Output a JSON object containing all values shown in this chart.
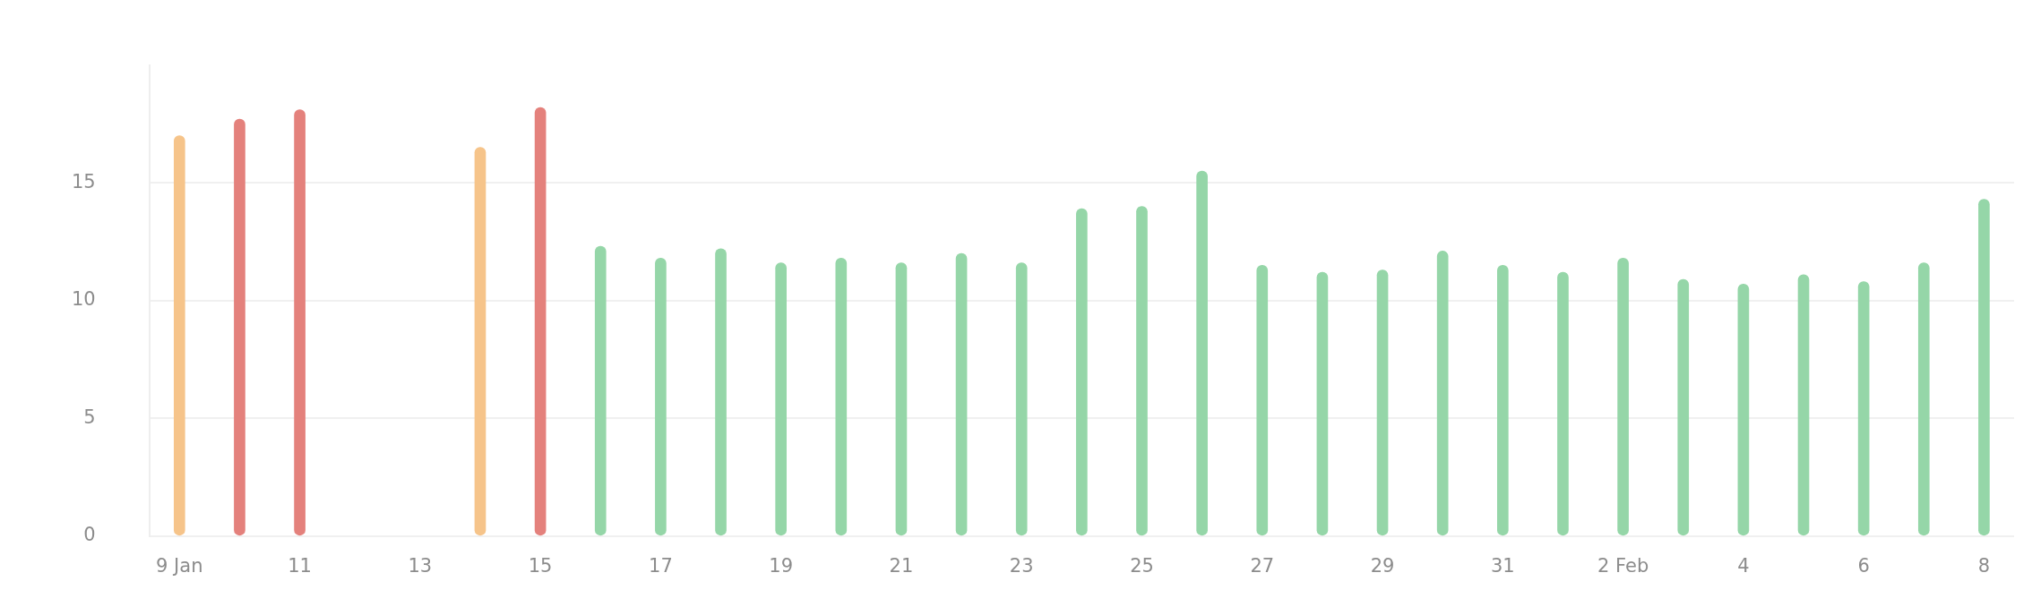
{
  "chart_data": {
    "type": "bar",
    "categories": [
      "9 Jan",
      null,
      "11",
      null,
      "13",
      null,
      "15",
      null,
      "17",
      null,
      "19",
      null,
      "21",
      null,
      "23",
      null,
      "25",
      null,
      "27",
      null,
      "29",
      null,
      "31",
      null,
      "2 Feb",
      null,
      "4",
      null,
      "6",
      null,
      "8"
    ],
    "values": [
      17.0,
      17.7,
      18.1,
      null,
      null,
      16.5,
      18.2,
      12.3,
      11.8,
      12.2,
      11.6,
      11.8,
      11.6,
      12.0,
      11.6,
      13.9,
      14.0,
      15.5,
      11.5,
      11.2,
      11.3,
      12.1,
      11.5,
      11.2,
      11.8,
      10.9,
      10.7,
      11.1,
      10.8,
      11.6,
      14.3
    ],
    "colors": [
      "#f6c48a",
      "#e4817c",
      "#e4817c",
      "#95d6a8",
      "#95d6a8",
      "#f6c48a",
      "#e4817c",
      "#95d6a8",
      "#95d6a8",
      "#95d6a8",
      "#95d6a8",
      "#95d6a8",
      "#95d6a8",
      "#95d6a8",
      "#95d6a8",
      "#95d6a8",
      "#95d6a8",
      "#95d6a8",
      "#95d6a8",
      "#95d6a8",
      "#95d6a8",
      "#95d6a8",
      "#95d6a8",
      "#95d6a8",
      "#95d6a8",
      "#95d6a8",
      "#95d6a8",
      "#95d6a8",
      "#95d6a8",
      "#95d6a8",
      "#95d6a8"
    ],
    "ylim": [
      0,
      20
    ],
    "yticks": [
      0,
      5,
      10,
      15
    ],
    "grid": "y",
    "legend": false
  }
}
